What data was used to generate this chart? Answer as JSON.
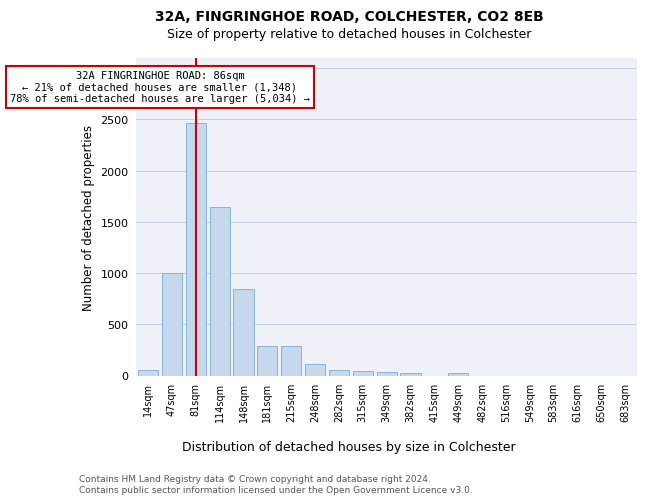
{
  "title1": "32A, FINGRINGHOE ROAD, COLCHESTER, CO2 8EB",
  "title2": "Size of property relative to detached houses in Colchester",
  "xlabel": "Distribution of detached houses by size in Colchester",
  "ylabel": "Number of detached properties",
  "categories": [
    "14sqm",
    "47sqm",
    "81sqm",
    "114sqm",
    "148sqm",
    "181sqm",
    "215sqm",
    "248sqm",
    "282sqm",
    "315sqm",
    "349sqm",
    "382sqm",
    "415sqm",
    "449sqm",
    "482sqm",
    "516sqm",
    "549sqm",
    "583sqm",
    "616sqm",
    "650sqm",
    "683sqm"
  ],
  "values": [
    55,
    1000,
    2470,
    1650,
    840,
    290,
    290,
    115,
    50,
    45,
    35,
    20,
    0,
    25,
    0,
    0,
    0,
    0,
    0,
    0,
    0
  ],
  "bar_color": "#c5d8ee",
  "bar_edge_color": "#7aadd4",
  "red_line_x": 2,
  "annotation_line1": "32A FINGRINGHOE ROAD: 86sqm",
  "annotation_line2": "← 21% of detached houses are smaller (1,348)",
  "annotation_line3": "78% of semi-detached houses are larger (5,034) →",
  "footer1": "Contains HM Land Registry data © Crown copyright and database right 2024.",
  "footer2": "Contains public sector information licensed under the Open Government Licence v3.0.",
  "ylim": [
    0,
    3100
  ],
  "yticks": [
    0,
    500,
    1000,
    1500,
    2000,
    2500,
    3000
  ],
  "plot_bg_color": "#eef2f8"
}
